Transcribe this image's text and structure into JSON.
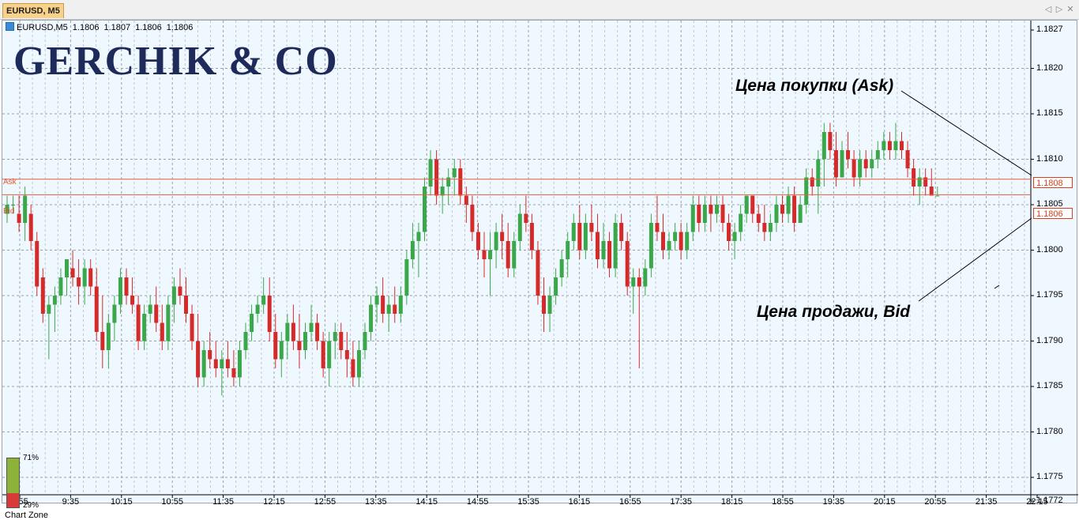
{
  "window": {
    "tab_title": "EURUSD, M5"
  },
  "symbol_line": {
    "symbol": "EURUSD,M5",
    "open": "1.1806",
    "high": "1.1807",
    "low": "1.1806",
    "close": "1.1806"
  },
  "logo": "GERCHIK & CO",
  "levels": {
    "ask_label": "Ask",
    "bid_label": "Bid",
    "ask_value": "1.1808",
    "bid_value": "1.1806",
    "ask_price": 1.18078,
    "bid_price": 1.18061,
    "line_color": "#e0603a"
  },
  "annotations": {
    "ask_text": "Цена покупки (Ask)",
    "bid_text": "Цена продажи, Bid"
  },
  "y_axis_labels": [
    "1.1827",
    "1.1820",
    "1.1815",
    "1.1810",
    "1.1805",
    "1.1800",
    "1.1795",
    "1.1790",
    "1.1785",
    "1.1780",
    "1.1775",
    "1.1772"
  ],
  "x_axis_labels": [
    "8:55",
    "9:35",
    "10:15",
    "10:55",
    "11:35",
    "12:15",
    "12:55",
    "13:35",
    "14:15",
    "14:55",
    "15:35",
    "16:15",
    "16:55",
    "17:35",
    "18:15",
    "18:55",
    "19:35",
    "20:15",
    "20:55",
    "21:35",
    "22:15"
  ],
  "chart_zone": {
    "label": "Chart Zone",
    "bull_pct_label": "71%",
    "bear_pct_label": "29%",
    "bull_pct": 71,
    "bear_pct": 29
  },
  "colors": {
    "background": "#f0f8ff",
    "bull": "#3aa84a",
    "bear": "#d42a2a",
    "grid": "#9aa0a8"
  },
  "chart_data": {
    "type": "candlestick",
    "title": "EURUSD, M5",
    "ylim": [
      1.1772,
      1.1827
    ],
    "x_ticks": [
      "8:55",
      "9:35",
      "10:15",
      "10:55",
      "11:35",
      "12:15",
      "12:55",
      "13:35",
      "14:15",
      "14:55",
      "15:35",
      "16:15",
      "16:55",
      "17:35",
      "18:15",
      "18:55",
      "19:35",
      "20:15",
      "20:55",
      "21:35",
      "22:15"
    ],
    "candles": [
      [
        1.1804,
        1.1806,
        1.1803,
        1.1805
      ],
      [
        1.1805,
        1.1806,
        1.1804,
        1.1805
      ],
      [
        1.1804,
        1.1806,
        1.1802,
        1.1803
      ],
      [
        1.1803,
        1.1807,
        1.1801,
        1.1806
      ],
      [
        1.1804,
        1.1805,
        1.18,
        1.1801
      ],
      [
        1.1801,
        1.1802,
        1.1795,
        1.1796
      ],
      [
        1.1797,
        1.1798,
        1.1792,
        1.1793
      ],
      [
        1.1793,
        1.1795,
        1.1788,
        1.1794
      ],
      [
        1.1794,
        1.1796,
        1.1791,
        1.1795
      ],
      [
        1.1795,
        1.1798,
        1.1794,
        1.1797
      ],
      [
        1.1797,
        1.1799,
        1.1795,
        1.1799
      ],
      [
        1.1798,
        1.18,
        1.1796,
        1.1797
      ],
      [
        1.1797,
        1.1799,
        1.1794,
        1.1796
      ],
      [
        1.1796,
        1.1799,
        1.1794,
        1.1798
      ],
      [
        1.1798,
        1.1799,
        1.1795,
        1.1796
      ],
      [
        1.1796,
        1.1798,
        1.179,
        1.1791
      ],
      [
        1.1791,
        1.1795,
        1.1787,
        1.1789
      ],
      [
        1.1789,
        1.1793,
        1.1787,
        1.1792
      ],
      [
        1.1792,
        1.1795,
        1.179,
        1.1794
      ],
      [
        1.1794,
        1.1798,
        1.1793,
        1.1797
      ],
      [
        1.1797,
        1.1798,
        1.1794,
        1.1795
      ],
      [
        1.1795,
        1.1797,
        1.1793,
        1.1794
      ],
      [
        1.1794,
        1.1795,
        1.1789,
        1.179
      ],
      [
        1.179,
        1.1794,
        1.1789,
        1.1793
      ],
      [
        1.1793,
        1.1795,
        1.1792,
        1.1794
      ],
      [
        1.1794,
        1.1796,
        1.1791,
        1.1792
      ],
      [
        1.1792,
        1.1794,
        1.1789,
        1.179
      ],
      [
        1.179,
        1.1795,
        1.1789,
        1.1794
      ],
      [
        1.1794,
        1.1797,
        1.1792,
        1.1796
      ],
      [
        1.1796,
        1.1798,
        1.1794,
        1.1795
      ],
      [
        1.1795,
        1.1797,
        1.1792,
        1.1793
      ],
      [
        1.1793,
        1.1794,
        1.1789,
        1.179
      ],
      [
        1.179,
        1.1793,
        1.1785,
        1.1786
      ],
      [
        1.1786,
        1.179,
        1.1785,
        1.1789
      ],
      [
        1.1789,
        1.1791,
        1.1787,
        1.1788
      ],
      [
        1.1788,
        1.179,
        1.1786,
        1.1787
      ],
      [
        1.1787,
        1.1789,
        1.1784,
        1.1788
      ],
      [
        1.1788,
        1.179,
        1.1786,
        1.1787
      ],
      [
        1.1787,
        1.1789,
        1.1785,
        1.1786
      ],
      [
        1.1786,
        1.179,
        1.1785,
        1.1789
      ],
      [
        1.1789,
        1.1792,
        1.1788,
        1.1791
      ],
      [
        1.1791,
        1.1794,
        1.179,
        1.1793
      ],
      [
        1.1793,
        1.1795,
        1.1792,
        1.1794
      ],
      [
        1.1794,
        1.1797,
        1.1793,
        1.1795
      ],
      [
        1.1795,
        1.1797,
        1.179,
        1.1791
      ],
      [
        1.1791,
        1.1793,
        1.1787,
        1.1788
      ],
      [
        1.1788,
        1.1791,
        1.1786,
        1.179
      ],
      [
        1.179,
        1.1793,
        1.1788,
        1.1792
      ],
      [
        1.1792,
        1.1794,
        1.1789,
        1.179
      ],
      [
        1.179,
        1.1793,
        1.1787,
        1.1789
      ],
      [
        1.1789,
        1.1792,
        1.1788,
        1.1791
      ],
      [
        1.1791,
        1.1794,
        1.179,
        1.1792
      ],
      [
        1.1792,
        1.1793,
        1.1789,
        1.179
      ],
      [
        1.179,
        1.1791,
        1.1786,
        1.1787
      ],
      [
        1.1787,
        1.1791,
        1.1785,
        1.179
      ],
      [
        1.179,
        1.1792,
        1.1788,
        1.1791
      ],
      [
        1.1791,
        1.1792,
        1.1788,
        1.1789
      ],
      [
        1.1789,
        1.1791,
        1.1786,
        1.1788
      ],
      [
        1.1788,
        1.179,
        1.1785,
        1.1786
      ],
      [
        1.1786,
        1.179,
        1.1785,
        1.1789
      ],
      [
        1.1789,
        1.1792,
        1.1788,
        1.1791
      ],
      [
        1.1791,
        1.1795,
        1.179,
        1.1794
      ],
      [
        1.1794,
        1.1796,
        1.1792,
        1.1795
      ],
      [
        1.1795,
        1.1797,
        1.1792,
        1.1793
      ],
      [
        1.1793,
        1.1795,
        1.1791,
        1.1794
      ],
      [
        1.1794,
        1.1796,
        1.1792,
        1.1793
      ],
      [
        1.1793,
        1.1796,
        1.1792,
        1.1795
      ],
      [
        1.1795,
        1.18,
        1.1794,
        1.1799
      ],
      [
        1.1799,
        1.1803,
        1.1798,
        1.1801
      ],
      [
        1.1801,
        1.1803,
        1.1797,
        1.1802
      ],
      [
        1.1802,
        1.1808,
        1.1801,
        1.1807
      ],
      [
        1.1807,
        1.1811,
        1.1806,
        1.181
      ],
      [
        1.181,
        1.1811,
        1.1805,
        1.1806
      ],
      [
        1.1806,
        1.1808,
        1.1804,
        1.1807
      ],
      [
        1.1807,
        1.1809,
        1.1805,
        1.1808
      ],
      [
        1.1808,
        1.181,
        1.1806,
        1.1809
      ],
      [
        1.1809,
        1.181,
        1.1805,
        1.1806
      ],
      [
        1.1806,
        1.1807,
        1.1803,
        1.1805
      ],
      [
        1.1805,
        1.1806,
        1.1801,
        1.1802
      ],
      [
        1.1802,
        1.1803,
        1.1799,
        1.18
      ],
      [
        1.18,
        1.1802,
        1.1797,
        1.1799
      ],
      [
        1.1799,
        1.1802,
        1.1795,
        1.18
      ],
      [
        1.18,
        1.1803,
        1.1798,
        1.1802
      ],
      [
        1.1802,
        1.1804,
        1.1799,
        1.1801
      ],
      [
        1.1801,
        1.1803,
        1.1797,
        1.1798
      ],
      [
        1.1798,
        1.1802,
        1.1797,
        1.1801
      ],
      [
        1.1801,
        1.1805,
        1.18,
        1.1804
      ],
      [
        1.1804,
        1.1806,
        1.1802,
        1.1803
      ],
      [
        1.1803,
        1.1804,
        1.1799,
        1.18
      ],
      [
        1.18,
        1.1801,
        1.1794,
        1.1795
      ],
      [
        1.1795,
        1.1797,
        1.1791,
        1.1793
      ],
      [
        1.1793,
        1.1796,
        1.1791,
        1.1795
      ],
      [
        1.1795,
        1.1798,
        1.1794,
        1.1797
      ],
      [
        1.1797,
        1.18,
        1.1796,
        1.1799
      ],
      [
        1.1799,
        1.1802,
        1.1797,
        1.1801
      ],
      [
        1.1801,
        1.1804,
        1.18,
        1.1803
      ],
      [
        1.1803,
        1.1805,
        1.1799,
        1.18
      ],
      [
        1.18,
        1.1804,
        1.1799,
        1.1803
      ],
      [
        1.1803,
        1.1805,
        1.1801,
        1.1802
      ],
      [
        1.1802,
        1.1804,
        1.1798,
        1.1799
      ],
      [
        1.1799,
        1.1803,
        1.1798,
        1.1801
      ],
      [
        1.1801,
        1.1802,
        1.1797,
        1.1798
      ],
      [
        1.1798,
        1.1804,
        1.1797,
        1.1803
      ],
      [
        1.1803,
        1.1804,
        1.18,
        1.1801
      ],
      [
        1.1801,
        1.1802,
        1.1795,
        1.1796
      ],
      [
        1.1796,
        1.1798,
        1.1793,
        1.1797
      ],
      [
        1.1797,
        1.1798,
        1.1787,
        1.1796
      ],
      [
        1.1796,
        1.1799,
        1.1795,
        1.1798
      ],
      [
        1.1798,
        1.1804,
        1.1797,
        1.1803
      ],
      [
        1.1803,
        1.1806,
        1.1801,
        1.1802
      ],
      [
        1.1802,
        1.1804,
        1.1799,
        1.18
      ],
      [
        1.18,
        1.1802,
        1.1799,
        1.1801
      ],
      [
        1.1801,
        1.1803,
        1.18,
        1.1802
      ],
      [
        1.1802,
        1.1803,
        1.1799,
        1.18
      ],
      [
        1.18,
        1.1803,
        1.1799,
        1.1802
      ],
      [
        1.1802,
        1.1806,
        1.1801,
        1.1805
      ],
      [
        1.1805,
        1.1806,
        1.1802,
        1.1803
      ],
      [
        1.1803,
        1.1806,
        1.1802,
        1.1805
      ],
      [
        1.1805,
        1.1806,
        1.1802,
        1.1804
      ],
      [
        1.1804,
        1.1806,
        1.1803,
        1.1805
      ],
      [
        1.1805,
        1.1806,
        1.1802,
        1.1803
      ],
      [
        1.1803,
        1.1804,
        1.18,
        1.1801
      ],
      [
        1.1801,
        1.1803,
        1.1799,
        1.1802
      ],
      [
        1.1802,
        1.1805,
        1.1801,
        1.1804
      ],
      [
        1.1804,
        1.1806,
        1.1803,
        1.1806
      ],
      [
        1.1806,
        1.1806,
        1.1803,
        1.1804
      ],
      [
        1.1804,
        1.1805,
        1.1802,
        1.1803
      ],
      [
        1.1803,
        1.1805,
        1.1801,
        1.1802
      ],
      [
        1.1802,
        1.1804,
        1.1801,
        1.1803
      ],
      [
        1.1803,
        1.1806,
        1.1802,
        1.1805
      ],
      [
        1.1805,
        1.1806,
        1.1803,
        1.1804
      ],
      [
        1.1804,
        1.1807,
        1.1803,
        1.1806
      ],
      [
        1.1806,
        1.1807,
        1.1802,
        1.1803
      ],
      [
        1.1803,
        1.1806,
        1.1803,
        1.1805
      ],
      [
        1.1805,
        1.1809,
        1.1804,
        1.1808
      ],
      [
        1.1808,
        1.1809,
        1.1806,
        1.1807
      ],
      [
        1.1807,
        1.1811,
        1.1804,
        1.181
      ],
      [
        1.181,
        1.1814,
        1.1807,
        1.1813
      ],
      [
        1.1813,
        1.1814,
        1.181,
        1.1811
      ],
      [
        1.1811,
        1.1813,
        1.1807,
        1.1808
      ],
      [
        1.1808,
        1.1812,
        1.1808,
        1.1811
      ],
      [
        1.1811,
        1.1813,
        1.1809,
        1.181
      ],
      [
        1.181,
        1.1811,
        1.1807,
        1.1808
      ],
      [
        1.1808,
        1.1811,
        1.1807,
        1.181
      ],
      [
        1.181,
        1.1811,
        1.1808,
        1.1809
      ],
      [
        1.1809,
        1.1811,
        1.1808,
        1.181
      ],
      [
        1.181,
        1.1812,
        1.1809,
        1.1811
      ],
      [
        1.1811,
        1.1813,
        1.181,
        1.1812
      ],
      [
        1.1812,
        1.1813,
        1.181,
        1.1811
      ],
      [
        1.1811,
        1.1814,
        1.181,
        1.1812
      ],
      [
        1.1812,
        1.1813,
        1.181,
        1.1811
      ],
      [
        1.1811,
        1.1812,
        1.1808,
        1.1809
      ],
      [
        1.1809,
        1.181,
        1.1806,
        1.1807
      ],
      [
        1.1807,
        1.1809,
        1.1805,
        1.1808
      ],
      [
        1.1808,
        1.1809,
        1.1806,
        1.1807
      ],
      [
        1.1807,
        1.1809,
        1.1806,
        1.1806
      ],
      [
        1.1806,
        1.1807,
        1.1806,
        1.1806
      ]
    ]
  }
}
